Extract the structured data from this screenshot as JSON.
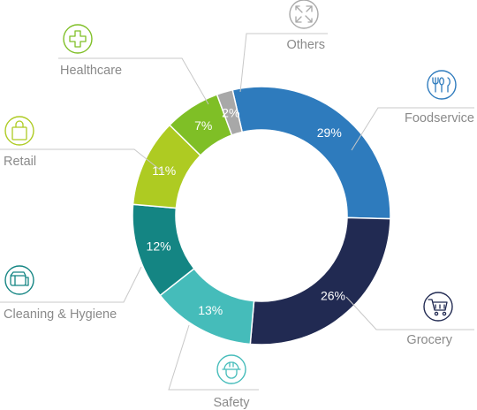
{
  "chart_data": {
    "type": "pie",
    "variant": "donut",
    "title": "",
    "series": [
      {
        "label": "Foodservice",
        "value": 29,
        "value_label": "29%",
        "color": "#2e7bbd",
        "icon": "fork-spoon-icon"
      },
      {
        "label": "Grocery",
        "value": 26,
        "value_label": "26%",
        "color": "#212a52",
        "icon": "shopping-cart-icon"
      },
      {
        "label": "Safety",
        "value": 13,
        "value_label": "13%",
        "color": "#45bcba",
        "icon": "hard-hat-icon"
      },
      {
        "label": "Cleaning & Hygiene",
        "value": 12,
        "value_label": "12%",
        "color": "#148583",
        "icon": "cleaning-towel-icon"
      },
      {
        "label": "Retail",
        "value": 11,
        "value_label": "11%",
        "color": "#aecb22",
        "icon": "shopping-bag-icon"
      },
      {
        "label": "Healthcare",
        "value": 7,
        "value_label": "7%",
        "color": "#7fbf26",
        "icon": "medical-cross-icon"
      },
      {
        "label": "Others",
        "value": 2,
        "value_label": "2%",
        "color": "#a8a8a8",
        "icon": "expand-arrows-icon"
      }
    ],
    "legend": "none"
  }
}
